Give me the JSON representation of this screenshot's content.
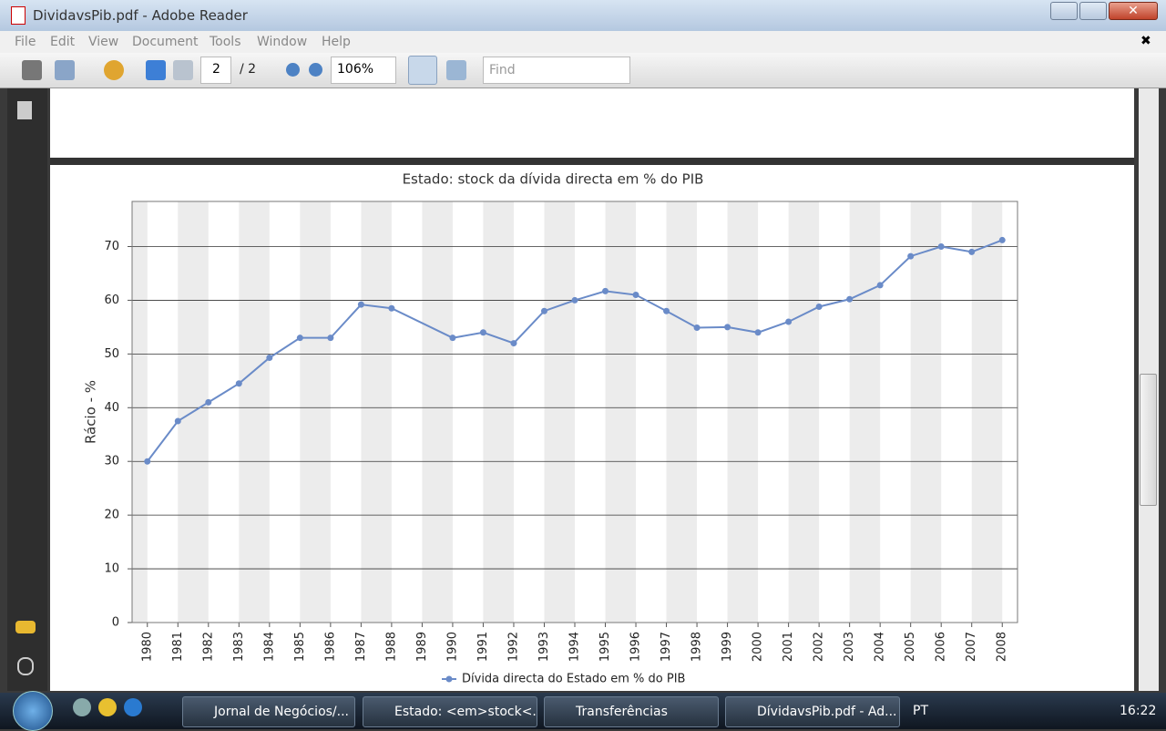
{
  "window": {
    "title": "DividavsPib.pdf - Adobe Reader"
  },
  "menu": [
    "File",
    "Edit",
    "View",
    "Document",
    "Tools",
    "Window",
    "Help"
  ],
  "toolbar": {
    "page_number": "2",
    "page_total": "/ 2",
    "zoom": "106%",
    "find": "Find"
  },
  "taskbar": {
    "items": [
      "Jornal de Negócios/...",
      "Estado: <em>stock<...",
      "Transferências",
      "DívidavsPib.pdf - Ad..."
    ],
    "language": "PT",
    "clock": "16:22"
  },
  "chart_data": {
    "type": "line",
    "title": "Estado: stock da dívida directa em % do PIB",
    "y_label": "Rácio - %",
    "x": [
      1980,
      1981,
      1982,
      1983,
      1984,
      1985,
      1986,
      1987,
      1988,
      1990,
      1991,
      1992,
      1993,
      1994,
      1995,
      1996,
      1997,
      1998,
      1999,
      2000,
      2001,
      2002,
      2003,
      2004,
      2005,
      2006,
      2007,
      2008
    ],
    "series": [
      {
        "name": "Dívida directa do Estado em % do PIB",
        "color": "#6a8bc8",
        "values": [
          30,
          37.5,
          41,
          44.5,
          49.3,
          53,
          53,
          59.2,
          58.5,
          53,
          54,
          52,
          58,
          60,
          61.7,
          61,
          58,
          54.9,
          55,
          54,
          56,
          58.8,
          60.2,
          62.8,
          68.2,
          70,
          69,
          71.2
        ]
      }
    ],
    "xlim": [
      1979.5,
      2008.5
    ],
    "ylim": [
      0,
      78.4
    ],
    "xticks": [
      1980,
      1981,
      1982,
      1983,
      1984,
      1985,
      1986,
      1987,
      1988,
      1989,
      1990,
      1991,
      1992,
      1993,
      1994,
      1995,
      1996,
      1997,
      1998,
      1999,
      2000,
      2001,
      2002,
      2003,
      2004,
      2005,
      2006,
      2007,
      2008
    ],
    "yticks": [
      0,
      10,
      20,
      30,
      40,
      50,
      60,
      70
    ],
    "grid": true,
    "alternating_bands": true,
    "legend": "bottom"
  }
}
